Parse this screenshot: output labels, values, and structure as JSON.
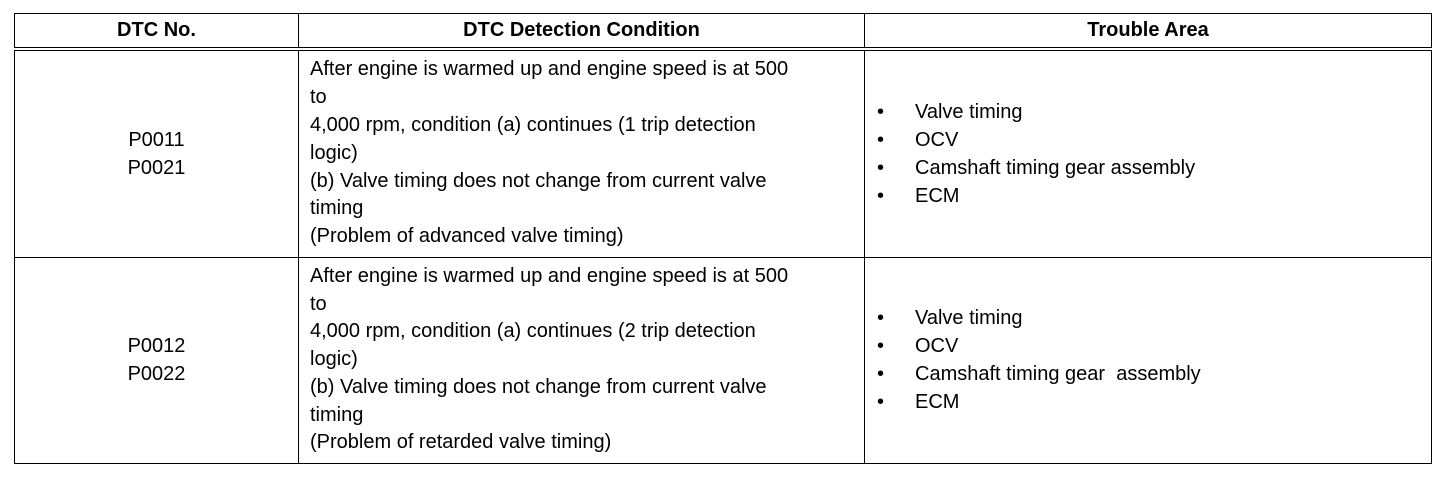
{
  "table": {
    "header": [
      "DTC No.",
      "DTC Detection Condition",
      "Trouble Area"
    ],
    "rows": [
      {
        "codes": [
          "P0011",
          "P0021"
        ],
        "condition": [
          "After engine is warmed up and engine speed is at 500",
          "to",
          "4,000 rpm, condition (a) continues (1 trip detection",
          "logic)",
          "(b) Valve timing does not change from current valve",
          "timing",
          "(Problem of advanced valve timing)"
        ],
        "areas": [
          "Valve timing",
          "OCV",
          "Camshaft timing gear assembly",
          "ECM"
        ]
      },
      {
        "codes": [
          "P0012",
          "P0022"
        ],
        "condition": [
          "After engine is warmed up and engine speed is at 500",
          "to",
          "4,000 rpm, condition (a) continues (2 trip detection",
          "logic)",
          "(b) Valve timing does not change from current valve",
          "timing",
          "(Problem of retarded valve timing)"
        ],
        "areas": [
          "Valve timing",
          "OCV",
          "Camshaft timing gear  assembly",
          "ECM"
        ]
      }
    ]
  }
}
